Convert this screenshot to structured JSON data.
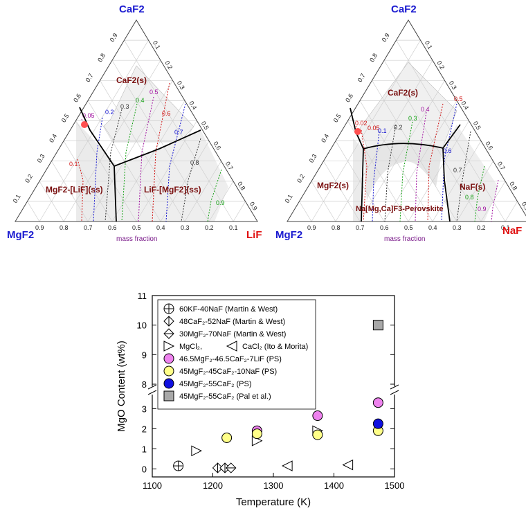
{
  "ternary_left": {
    "top": "CaF2",
    "left": "MgF2",
    "right": "LiF",
    "mass_fraction": "mass fraction",
    "ticks": [
      "0.9",
      "0.8",
      "0.7",
      "0.6",
      "0.5",
      "0.4",
      "0.3",
      "0.2",
      "0.1"
    ],
    "phases": {
      "caf2": "CaF2(s)",
      "mgf2": "MgF2-[LiF](ss)",
      "lif": "LiF-[MgF2](ss)"
    },
    "iso_labels": [
      "0.05",
      "0.1",
      "0.2",
      "0.3",
      "0.4",
      "0.5",
      "0.6",
      "0.7",
      "0.8",
      "0.9"
    ]
  },
  "ternary_right": {
    "top": "CaF2",
    "left": "MgF2",
    "right": "NaF",
    "mass_fraction": "mass fraction",
    "ticks": [
      "0.9",
      "0.8",
      "0.7",
      "0.6",
      "0.5",
      "0.4",
      "0.3",
      "0.2",
      "0.1"
    ],
    "phases": {
      "caf2": "CaF2(s)",
      "mgf2": "MgF2(s)",
      "naf": "NaF(s)",
      "perov": "Na[Mg,Ca]F3-Perovskite"
    },
    "iso_labels": [
      "0.02",
      "0.05",
      "0.1",
      "0.2",
      "0.3",
      "0.4",
      "0.5",
      "0.6",
      "0.7",
      "0.8",
      "0.9"
    ]
  },
  "chart_data": {
    "type": "scatter",
    "xlabel": "Temperature (K)",
    "ylabel": "MgO Content (wt%)",
    "xlim": [
      1100,
      1500
    ],
    "x_ticks": [
      1100,
      1200,
      1300,
      1400,
      1500
    ],
    "y_ticks_lower": [
      0,
      1,
      2,
      3
    ],
    "y_ticks_upper": [
      8,
      9,
      10,
      11
    ],
    "axis_break": [
      3.6,
      7.8
    ],
    "legend_position": "top-left",
    "series": [
      {
        "name": "60KF-40NaF (Martin & West)",
        "marker": "circle-cross",
        "color": "#ffffff",
        "points": [
          [
            1143,
            0.15
          ]
        ]
      },
      {
        "name": "48CaF₂-52NaF (Martin & West)",
        "marker": "diamond-vbar",
        "color": "#ffffff",
        "points": [
          [
            1208,
            0.05
          ],
          [
            1220,
            0.05
          ]
        ]
      },
      {
        "name": "30MgF₂-70NaF (Martin & West)",
        "marker": "diamond-hbar",
        "color": "#ffffff",
        "points": [
          [
            1230,
            0.05
          ]
        ]
      },
      {
        "name": "MgCl₂,",
        "marker": "triangle-right",
        "color": "#ffffff",
        "points": [
          [
            1173,
            0.9
          ],
          [
            1273,
            1.4
          ],
          [
            1373,
            1.9
          ]
        ]
      },
      {
        "name": "CaCl₂ (Ito & Morita)",
        "marker": "triangle-left",
        "color": "#ffffff",
        "points": [
          [
            1323,
            0.15
          ],
          [
            1423,
            0.2
          ]
        ]
      },
      {
        "name": "46.5MgF₂-46.5CaF₂-7LiF (PS)",
        "marker": "circle",
        "color": "#ee82ee",
        "points": [
          [
            1273,
            1.9
          ],
          [
            1373,
            2.65
          ],
          [
            1473,
            3.3
          ]
        ]
      },
      {
        "name": "45MgF₂-45CaF₂-10NaF (PS)",
        "marker": "circle",
        "color": "#ffff88",
        "points": [
          [
            1223,
            1.55
          ],
          [
            1273,
            1.75
          ],
          [
            1373,
            1.7
          ],
          [
            1473,
            1.9
          ]
        ]
      },
      {
        "name": "45MgF₂-55CaF₂ (PS)",
        "marker": "circle",
        "color": "#1010e0",
        "points": [
          [
            1473,
            2.25
          ]
        ]
      },
      {
        "name": "45MgF₂-55CaF₂ (Pal et al.)",
        "marker": "square",
        "color": "#a8a8a8",
        "points": [
          [
            1473,
            10.0
          ]
        ]
      }
    ],
    "legend_last_ref": "(Ito & Morita)"
  }
}
